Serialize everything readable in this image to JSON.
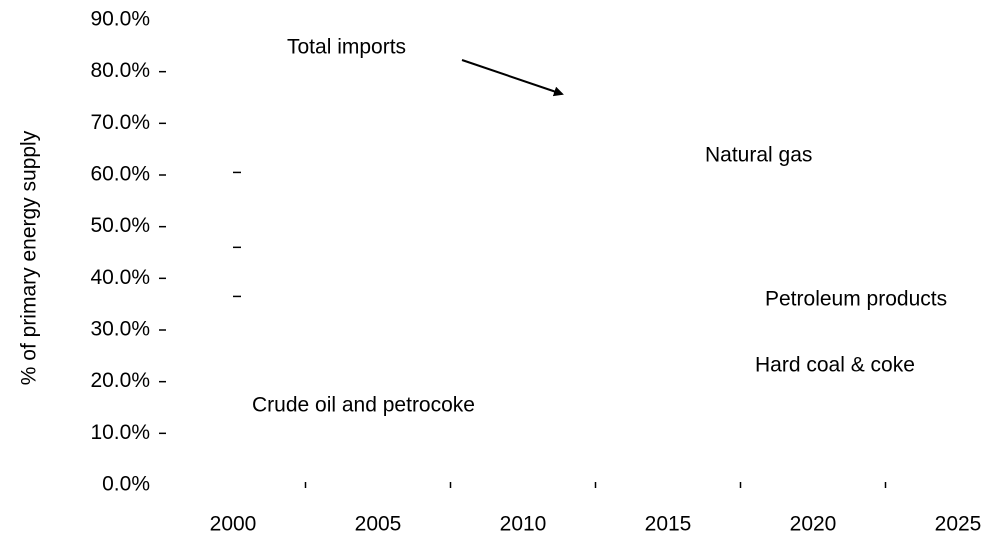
{
  "chart_data": {
    "type": "line",
    "y_label": "% of primary energy supply",
    "x": [
      2000
    ],
    "series": [
      {
        "color": "#000000",
        "values": [
          60.5
        ]
      },
      {
        "color": "#000000",
        "values": [
          46
        ]
      },
      {
        "color": "#000000",
        "values": [
          36.5
        ]
      }
    ],
    "xlim": [
      2000,
      2025
    ],
    "xticks": [
      2000,
      2005,
      2010,
      2015,
      2020,
      2025
    ],
    "ylim": [
      0,
      90
    ],
    "yticks": [
      {
        "value": 0,
        "label": "0.0%"
      },
      {
        "value": 10,
        "label": "10.0%"
      },
      {
        "value": 20,
        "label": "20.0%"
      },
      {
        "value": 30,
        "label": "30.0%"
      },
      {
        "value": 40,
        "label": "40.0%"
      },
      {
        "value": 50,
        "label": "50.0%"
      },
      {
        "value": 60,
        "label": "60.0%"
      },
      {
        "value": 70,
        "label": "70.0%"
      },
      {
        "value": 80,
        "label": "80.0%"
      },
      {
        "value": 90,
        "label": "90.0%"
      }
    ],
    "annotations": [
      "Total imports",
      "Natural gas",
      "Petroleum products",
      "Hard coal & coke",
      "Crude oil and petrocoke"
    ],
    "grid": false
  }
}
